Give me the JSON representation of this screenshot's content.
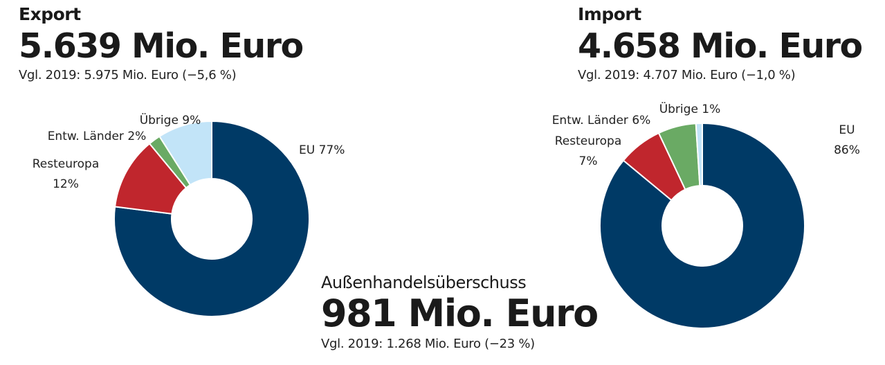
{
  "export": {
    "label": "Export",
    "value": "5.639 Mio. Euro",
    "comparison": "Vgl. 2019: 5.975 Mio. Euro (−5,6 %)"
  },
  "import": {
    "label": "Import",
    "value": "4.658 Mio. Euro",
    "comparison": "Vgl. 2019: 4.707 Mio. Euro (−1,0 %)"
  },
  "surplus": {
    "label": "Außenhandelsüberschuss",
    "value": "981 Mio. Euro",
    "comparison": "Vgl. 2019: 1.268 Mio. Euro (−23 %)"
  },
  "colors": {
    "EU": "#003a66",
    "Resteuropa": "#c0262d",
    "Entw. Länder": "#6aaa64",
    "Übrige": "#c2e4f8"
  },
  "chart_data": [
    {
      "type": "pie",
      "title": "Export",
      "categories": [
        "EU",
        "Resteuropa",
        "Entw. Länder",
        "Übrige"
      ],
      "values": [
        77,
        12,
        2,
        9
      ],
      "unit": "%",
      "labels": [
        [
          "EU 77%"
        ],
        [
          "Resteuropa",
          "12%"
        ],
        [
          "Entw. Länder 2%"
        ],
        [
          "Übrige 9%"
        ]
      ]
    },
    {
      "type": "pie",
      "title": "Import",
      "categories": [
        "EU",
        "Resteuropa",
        "Entw. Länder",
        "Übrige"
      ],
      "values": [
        86,
        7,
        6,
        1
      ],
      "unit": "%",
      "labels": [
        [
          "EU",
          "86%"
        ],
        [
          "Resteuropa",
          "7%"
        ],
        [
          "Entw. Länder 6%"
        ],
        [
          "Übrige 1%"
        ]
      ]
    }
  ]
}
